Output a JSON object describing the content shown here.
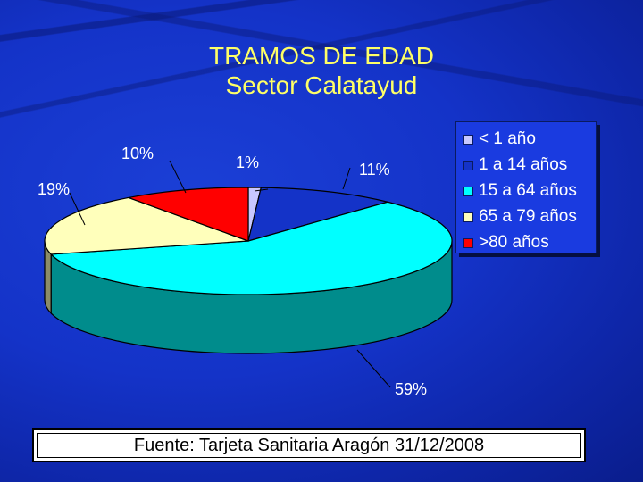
{
  "chart_data": {
    "type": "pie",
    "title": "TRAMOS DE EDAD",
    "subtitle": "Sector Calatayud",
    "slices": [
      {
        "name": "< 1 año",
        "value": 1,
        "label": "1%",
        "color": "#c8c8ff"
      },
      {
        "name": "1 a 14 años",
        "value": 11,
        "label": "11%",
        "color": "#1433c8"
      },
      {
        "name": "15 a 64 años",
        "value": 59,
        "label": "59%",
        "color": "#00ffff"
      },
      {
        "name": "65 a 79 años",
        "value": 19,
        "label": "19%",
        "color": "#ffffbb"
      },
      {
        "name": ">80 años",
        "value": 10,
        "label": "10%",
        "color": "#ff0000"
      }
    ],
    "legend_position": "right"
  },
  "source_text": "Fuente: Tarjeta Sanitaria Aragón 31/12/2008"
}
